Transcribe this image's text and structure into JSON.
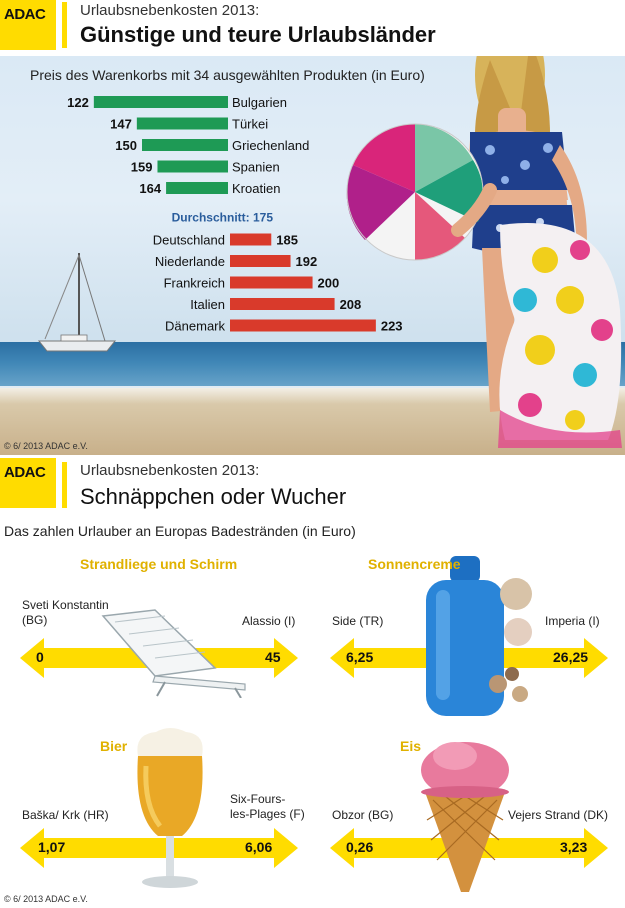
{
  "colors": {
    "adac_yellow": "#ffdc00",
    "cheap_bar": "#1e9a55",
    "expensive_bar": "#d93a2b",
    "average_text": "#2a5d9c",
    "category_title": "#e0b100"
  },
  "panel1": {
    "logo": "ADAC",
    "header_sub": "Urlaubsnebenkosten 2013:",
    "header_title": "Günstige und teure Urlaubsländer",
    "copyright": "© 6/ 2013  ADAC e.V."
  },
  "panel2": {
    "logo": "ADAC",
    "header_sub": "Urlaubsnebenkosten 2013:",
    "header_title": "Schnäppchen oder Wucher",
    "subtitle": "Das zahlen Urlauber an Europas Badestränden (in Euro)",
    "copyright": "© 6/ 2013  ADAC e.V.",
    "categories": [
      {
        "title": "Strandliege und Schirm",
        "min_place": "Sveti Konstantin\n(BG)",
        "min_value": "0",
        "max_place": "Alassio (I)",
        "max_value": "45",
        "icon": "beach-lounger-icon"
      },
      {
        "title": "Sonnencreme",
        "min_place": "Side (TR)",
        "min_value": "6,25",
        "max_place": "Imperia (I)",
        "max_value": "26,25",
        "icon": "sunscreen-bottle-icon"
      },
      {
        "title": "Bier",
        "min_place": "Baška/ Krk (HR)",
        "min_value": "1,07",
        "max_place": "Six-Fours-\nles-Plages (F)",
        "max_value": "6,06",
        "icon": "beer-glass-icon"
      },
      {
        "title": "Eis",
        "min_place": "Obzor (BG)",
        "min_value": "0,26",
        "max_place": "Vejers Strand (DK)",
        "max_value": "3,23",
        "icon": "ice-cream-cone-icon"
      }
    ]
  },
  "chart_data": {
    "type": "bar",
    "orientation": "horizontal",
    "title": "Preis des Warenkorbs mit 34 ausgewählten Produkten (in Euro)",
    "average_label": "Durchschnitt: 175",
    "average": 175,
    "cheaper": [
      {
        "country": "Bulgarien",
        "value": 122,
        "label": "122"
      },
      {
        "country": "Türkei",
        "value": 147,
        "label": "147"
      },
      {
        "country": "Griechenland",
        "value": 150,
        "label": "150"
      },
      {
        "country": "Spanien",
        "value": 159,
        "label": "159"
      },
      {
        "country": "Kroatien",
        "value": 164,
        "label": "164"
      }
    ],
    "more_expensive": [
      {
        "country": "Deutschland",
        "value": 185,
        "label": "185"
      },
      {
        "country": "Niederlande",
        "value": 192,
        "label": "192"
      },
      {
        "country": "Frankreich",
        "value": 200,
        "label": "200"
      },
      {
        "country": "Italien",
        "value": 208,
        "label": "208"
      },
      {
        "country": "Dänemark",
        "value": 223,
        "label": "223"
      }
    ]
  }
}
